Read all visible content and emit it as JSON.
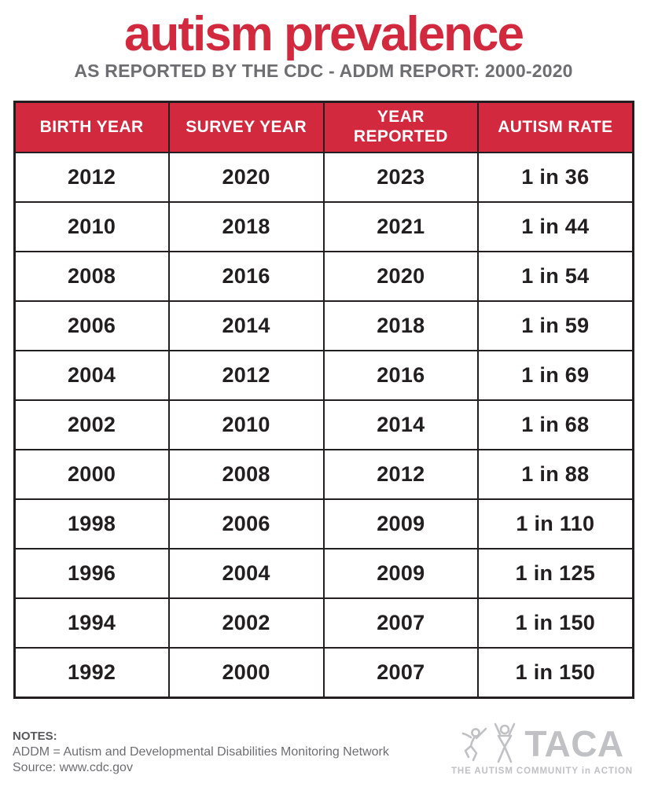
{
  "page": {
    "title": "autism prevalence",
    "subtitle": "AS REPORTED BY THE CDC - ADDM REPORT: 2000-2020"
  },
  "table": {
    "headers": [
      "BIRTH YEAR",
      "SURVEY YEAR",
      "YEAR\nREPORTED",
      "AUTISM RATE"
    ],
    "rows": [
      [
        "2012",
        "2020",
        "2023",
        "1 in 36"
      ],
      [
        "2010",
        "2018",
        "2021",
        "1 in 44"
      ],
      [
        "2008",
        "2016",
        "2020",
        "1 in 54"
      ],
      [
        "2006",
        "2014",
        "2018",
        "1 in 59"
      ],
      [
        "2004",
        "2012",
        "2016",
        "1 in 69"
      ],
      [
        "2002",
        "2010",
        "2014",
        "1 in 68"
      ],
      [
        "2000",
        "2008",
        "2012",
        "1 in 88"
      ],
      [
        "1998",
        "2006",
        "2009",
        "1 in 110"
      ],
      [
        "1996",
        "2004",
        "2009",
        "1 in 125"
      ],
      [
        "1994",
        "2002",
        "2007",
        "1 in 150"
      ],
      [
        "1992",
        "2000",
        "2007",
        "1 in 150"
      ]
    ]
  },
  "notes": {
    "label": "NOTES:",
    "line1": "ADDM = Autism and Developmental Disabilities Monitoring Network",
    "line2": "Source: www.cdc.gov"
  },
  "logo": {
    "name": "TACA",
    "tagline": "THE AUTISM COMMUNITY in ACTION",
    "icon": "taca-figures-icon"
  },
  "colors": {
    "accent_red": "#D2293E",
    "header_text": "#FFFFFF",
    "table_text": "#231F20",
    "border": "#231F20",
    "subtitle_gray": "#6D6E71",
    "notes_gray": "#6D6E71",
    "logo_gray": "#BFC1C4"
  },
  "chart_data": {
    "type": "table",
    "title": "autism prevalence",
    "subtitle": "AS REPORTED BY THE CDC - ADDM REPORT: 2000-2020",
    "columns": [
      "BIRTH YEAR",
      "SURVEY YEAR",
      "YEAR REPORTED",
      "AUTISM RATE"
    ],
    "rows": [
      [
        "2012",
        "2020",
        "2023",
        "1 in 36"
      ],
      [
        "2010",
        "2018",
        "2021",
        "1 in 44"
      ],
      [
        "2008",
        "2016",
        "2020",
        "1 in 54"
      ],
      [
        "2006",
        "2014",
        "2018",
        "1 in 59"
      ],
      [
        "2004",
        "2012",
        "2016",
        "1 in 69"
      ],
      [
        "2002",
        "2010",
        "2014",
        "1 in 68"
      ],
      [
        "2000",
        "2008",
        "2012",
        "1 in 88"
      ],
      [
        "1998",
        "2006",
        "2009",
        "1 in 110"
      ],
      [
        "1996",
        "2004",
        "2009",
        "1 in 125"
      ],
      [
        "1994",
        "2002",
        "2007",
        "1 in 150"
      ],
      [
        "1992",
        "2000",
        "2007",
        "1 in 150"
      ]
    ],
    "notes": [
      "ADDM = Autism and Developmental Disabilities Monitoring Network",
      "Source: www.cdc.gov"
    ]
  }
}
